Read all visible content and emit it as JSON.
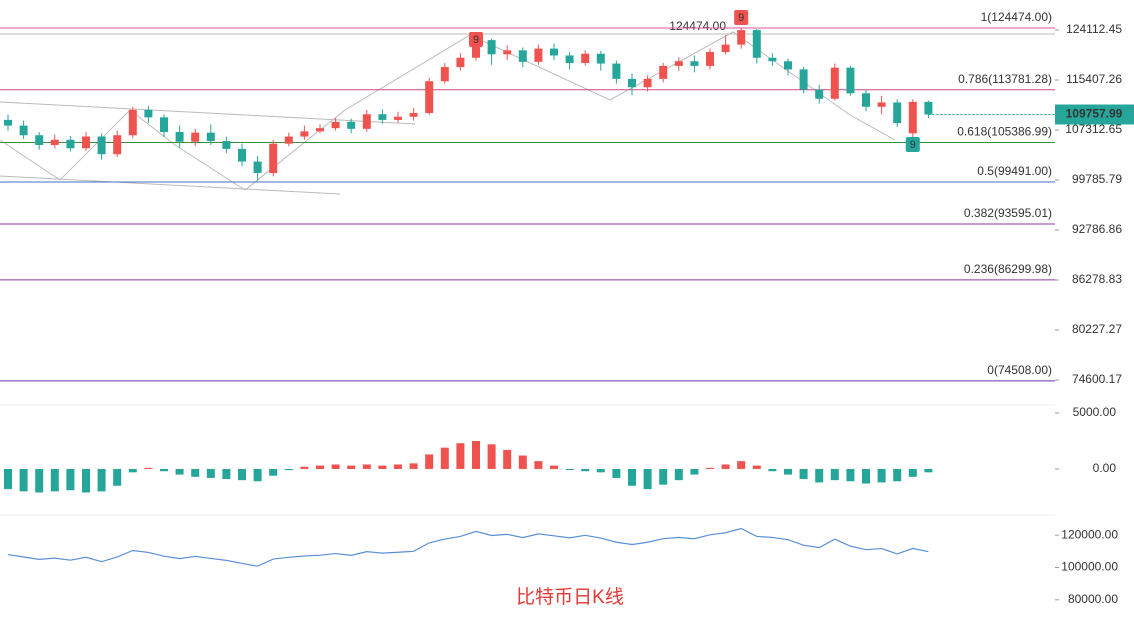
{
  "chart_data": {
    "type": "candlestick",
    "log_scale": true,
    "ylim": [
      72460,
      129650
    ],
    "yticks": [
      124112.45,
      115407.26,
      107312.65,
      99785.79,
      92786.86,
      86278.83,
      80227.27,
      74600.17
    ],
    "up_color": "#ef5350",
    "down_color": "#26a69a",
    "current_price": 109757.99,
    "open": [
      108900,
      108000,
      106500,
      105000,
      105800,
      104500,
      106300,
      103600,
      106500,
      110500,
      109300,
      107000,
      105500,
      106900,
      105600,
      104400,
      102500,
      100800,
      105200,
      106300,
      107100,
      107600,
      108600,
      107500,
      109800,
      108900,
      109400,
      110000,
      115200,
      117600,
      119200,
      122300,
      119800,
      120500,
      118500,
      120800,
      119600,
      118300,
      119900,
      118200,
      115600,
      114200,
      115600,
      117800,
      118600,
      117800,
      120200,
      121500,
      124100,
      119200,
      118600,
      117200,
      113800,
      112300,
      117500,
      113200,
      111000,
      111700,
      106800,
      111800
    ],
    "close": [
      108000,
      106500,
      105000,
      105800,
      104500,
      106300,
      103600,
      106500,
      110500,
      109300,
      107000,
      105500,
      106900,
      105600,
      104400,
      102500,
      100800,
      105200,
      106300,
      107100,
      107600,
      108600,
      107500,
      109800,
      108900,
      109400,
      110000,
      115200,
      117600,
      119200,
      122300,
      119800,
      120500,
      118500,
      120800,
      119600,
      118300,
      119900,
      118200,
      115600,
      114200,
      115600,
      117800,
      118600,
      117800,
      120200,
      121500,
      124100,
      119200,
      118600,
      117200,
      113800,
      112300,
      117500,
      113200,
      111000,
      111700,
      108400,
      111800,
      109757.99
    ],
    "high": [
      109800,
      108800,
      107000,
      106600,
      106400,
      107000,
      106800,
      107200,
      111000,
      111200,
      109800,
      108000,
      107500,
      108200,
      106300,
      105200,
      103300,
      105800,
      106900,
      108000,
      108200,
      109200,
      109100,
      110500,
      110600,
      110200,
      110800,
      115800,
      118300,
      120000,
      123200,
      122600,
      121400,
      121000,
      121500,
      121700,
      120200,
      120500,
      120400,
      118700,
      116500,
      116200,
      118300,
      119300,
      119600,
      120800,
      123200,
      124474,
      124300,
      120000,
      119100,
      117600,
      114600,
      118200,
      117800,
      113800,
      112800,
      112200,
      112200,
      112000
    ],
    "low": [
      107200,
      105900,
      104300,
      104500,
      104000,
      104100,
      102800,
      103200,
      106000,
      108400,
      106200,
      104600,
      104800,
      105000,
      103800,
      101800,
      99700,
      100300,
      104800,
      105800,
      106800,
      107200,
      106800,
      107000,
      108300,
      108500,
      108800,
      109700,
      114800,
      117000,
      118700,
      118000,
      118800,
      117600,
      118000,
      118800,
      117200,
      117900,
      117000,
      114800,
      112900,
      113500,
      115000,
      116900,
      116700,
      117200,
      119800,
      120800,
      118200,
      117800,
      116200,
      113200,
      111500,
      112000,
      112800,
      110300,
      109800,
      107800,
      105400,
      109200
    ],
    "fib_levels": [
      {
        "label": "1(124474.00)",
        "value": 124474.0,
        "color": "#e056a0"
      },
      {
        "label": "0.786(113781.28)",
        "value": 113781.28,
        "color": "#d0468c"
      },
      {
        "label": "0.618(105386.99)",
        "value": 105386.99,
        "color": "#3d8b3d"
      },
      {
        "label": "0.5(99491.00)",
        "value": 99491.0,
        "color": "#4a6fc4"
      },
      {
        "label": "0.382(93595.01)",
        "value": 93595.01,
        "color": "#8b3a9c"
      },
      {
        "label": "0.236(86299.98)",
        "value": 86299.98,
        "color": "#8b3a9c"
      },
      {
        "label": "0(74508.00)",
        "value": 74508.0,
        "color": "#6a2fb0"
      }
    ],
    "annotations": [
      "124474.00",
      "9",
      "9",
      "9"
    ],
    "macd": {
      "ylim": [
        -2770,
        5710
      ],
      "yticks": [
        {
          "value": 5000,
          "label": "5000.00"
        },
        {
          "value": 0,
          "label": "0.00"
        }
      ],
      "values": [
        -1800,
        -2000,
        -2100,
        -2000,
        -1900,
        -2100,
        -2000,
        -1500,
        -300,
        100,
        -200,
        -500,
        -700,
        -800,
        -900,
        -1000,
        -1100,
        -600,
        -100,
        200,
        300,
        400,
        300,
        400,
        300,
        400,
        500,
        1300,
        1900,
        2300,
        2500,
        2200,
        1700,
        1200,
        700,
        300,
        -100,
        -200,
        -300,
        -800,
        -1500,
        -1800,
        -1400,
        -1000,
        -500,
        100,
        400,
        700,
        300,
        -200,
        -500,
        -900,
        -1200,
        -1000,
        -1100,
        -1300,
        -1200,
        -1100,
        -700,
        -300
      ]
    },
    "overview": {
      "ylim": [
        67500,
        129375
      ],
      "yticks": [
        {
          "value": 120000,
          "label": "120000.00"
        },
        {
          "value": 100000,
          "label": "100000.00"
        },
        {
          "value": 80000,
          "label": "80000.00"
        }
      ]
    },
    "caption": "比特币日K线"
  }
}
